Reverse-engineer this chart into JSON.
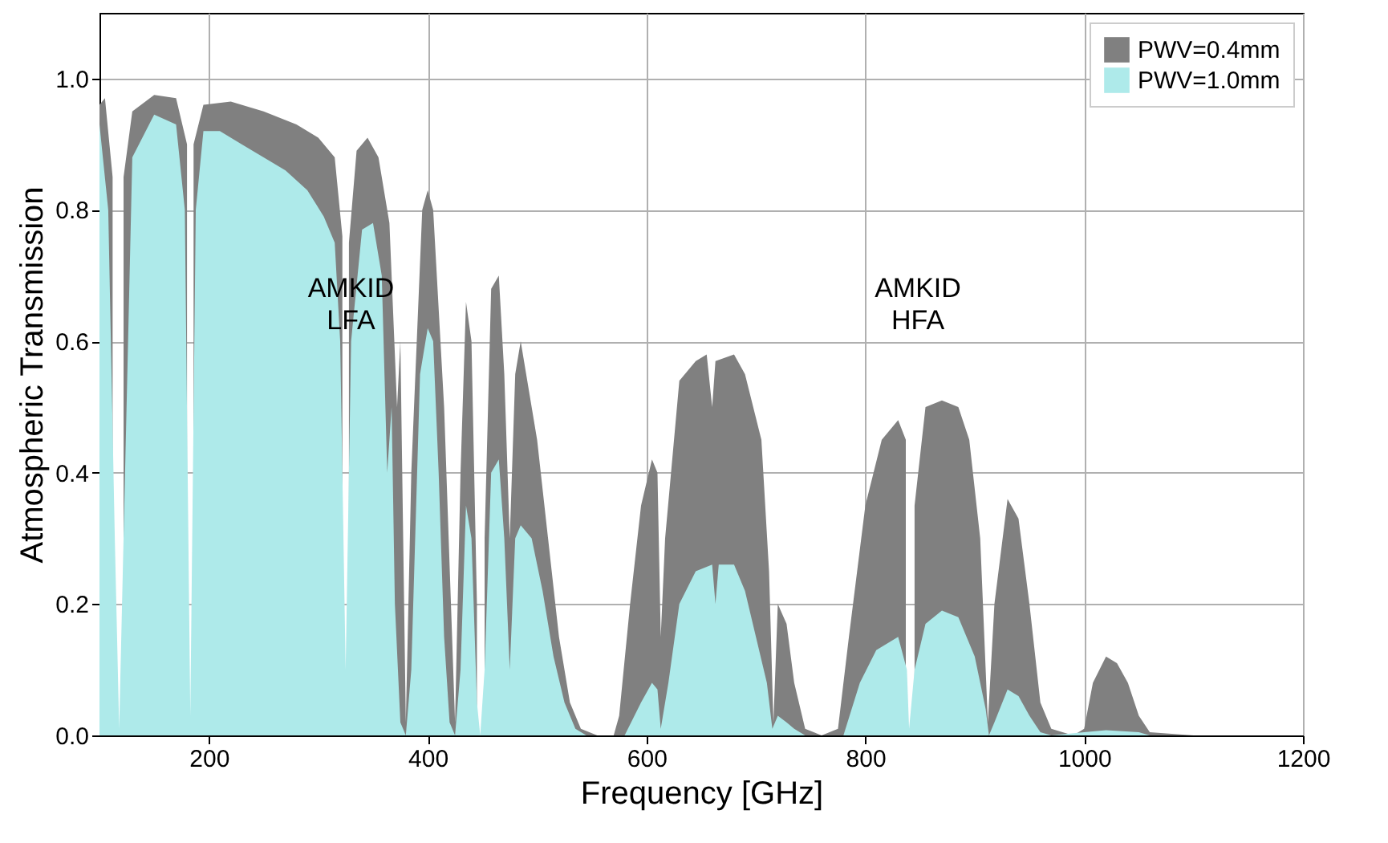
{
  "chart_data": {
    "type": "area",
    "xlabel": "Frequency [GHz]",
    "ylabel": "Atmospheric Transmission",
    "xlim": [
      100,
      1200
    ],
    "ylim": [
      0,
      1.1
    ],
    "xticks": [
      200,
      400,
      600,
      800,
      1000,
      1200
    ],
    "yticks": [
      {
        "value": 0,
        "label": "0.0"
      },
      {
        "value": 0.2,
        "label": "0.2"
      },
      {
        "value": 0.4,
        "label": "0.4"
      },
      {
        "value": 0.6,
        "label": "0.6"
      },
      {
        "value": 0.8,
        "label": "0.8"
      },
      {
        "value": 1,
        "label": "1.0"
      }
    ],
    "grid": true,
    "legend": "top right",
    "annotations": [
      "AMKID LFA",
      "AMKID HFA"
    ],
    "series": [
      {
        "name": "PWV=0.4mm",
        "color": "#808080",
        "x": [
          100,
          105,
          112,
          118,
          122,
          130,
          150,
          170,
          180,
          183,
          186,
          195,
          220,
          250,
          280,
          300,
          315,
          322,
          325,
          328,
          335,
          345,
          355,
          365,
          372,
          375,
          380,
          385,
          395,
          400,
          405,
          415,
          425,
          430,
          435,
          440,
          445,
          448,
          452,
          458,
          465,
          470,
          475,
          480,
          485,
          490,
          500,
          510,
          520,
          530,
          540,
          555,
          570,
          575,
          585,
          595,
          605,
          610,
          613,
          617,
          630,
          645,
          655,
          660,
          663,
          680,
          690,
          705,
          712,
          716,
          720,
          728,
          735,
          745,
          760,
          775,
          785,
          800,
          815,
          830,
          837,
          840,
          845,
          855,
          870,
          885,
          895,
          905,
          912,
          918,
          930,
          940,
          950,
          960,
          970,
          990,
          1000,
          1008,
          1020,
          1030,
          1040,
          1050,
          1060,
          1100,
          1200
        ],
        "values": [
          0.96,
          0.97,
          0.85,
          null,
          0.85,
          0.95,
          0.975,
          0.97,
          0.9,
          null,
          0.9,
          0.96,
          0.965,
          0.95,
          0.93,
          0.91,
          0.88,
          0.76,
          null,
          0.75,
          0.89,
          0.91,
          0.88,
          0.78,
          0.5,
          0.6,
          0.02,
          0.4,
          0.8,
          0.83,
          0.8,
          0.5,
          0.02,
          0.4,
          0.66,
          0.6,
          0.2,
          null,
          0.3,
          0.68,
          0.7,
          0.55,
          0.3,
          0.55,
          0.6,
          0.55,
          0.45,
          0.3,
          0.15,
          0.05,
          0.01,
          0,
          0,
          0.03,
          0.2,
          0.35,
          0.42,
          0.4,
          0.15,
          0.3,
          0.54,
          0.57,
          0.58,
          0.5,
          0.57,
          0.58,
          0.55,
          0.45,
          0.25,
          0.02,
          0.2,
          0.17,
          0.08,
          0.01,
          0,
          0.01,
          0.15,
          0.35,
          0.45,
          0.48,
          0.45,
          null,
          0.35,
          0.5,
          0.51,
          0.5,
          0.45,
          0.3,
          0.02,
          0.2,
          0.36,
          0.33,
          0.2,
          0.05,
          0.01,
          0,
          0.01,
          0.08,
          0.12,
          0.11,
          0.08,
          0.03,
          0.005,
          0,
          0
        ]
      },
      {
        "name": "PWV=1.0mm",
        "color": "#aeeaea",
        "x": [
          100,
          108,
          114,
          118,
          122,
          130,
          150,
          170,
          178,
          183,
          188,
          195,
          210,
          230,
          250,
          270,
          290,
          305,
          315,
          320,
          325,
          330,
          340,
          350,
          358,
          363,
          367,
          370,
          375,
          380,
          385,
          393,
          400,
          405,
          410,
          415,
          420,
          425,
          430,
          435,
          440,
          445,
          448,
          452,
          458,
          465,
          470,
          475,
          480,
          485,
          495,
          505,
          515,
          525,
          535,
          545,
          580,
          595,
          605,
          610,
          613,
          620,
          630,
          645,
          660,
          663,
          666,
          680,
          690,
          700,
          710,
          715,
          720,
          728,
          735,
          745,
          780,
          795,
          810,
          830,
          838,
          840,
          845,
          855,
          870,
          885,
          900,
          910,
          913,
          918,
          930,
          940,
          950,
          960,
          970,
          1000,
          1020,
          1050,
          1060,
          1200
        ],
        "values": [
          0.93,
          0.8,
          0.3,
          0.01,
          0.3,
          0.88,
          0.945,
          0.93,
          0.8,
          0.03,
          0.8,
          0.92,
          0.92,
          0.9,
          0.88,
          0.86,
          0.83,
          0.79,
          0.75,
          0.6,
          0.1,
          0.6,
          0.77,
          0.78,
          0.7,
          0.4,
          0.5,
          0.2,
          0.02,
          0,
          0.1,
          0.55,
          0.62,
          0.6,
          0.4,
          0.15,
          0.02,
          0,
          0.1,
          0.35,
          0.3,
          0.05,
          0,
          0.1,
          0.4,
          0.42,
          0.3,
          0.1,
          0.3,
          0.32,
          0.3,
          0.22,
          0.12,
          0.05,
          0.01,
          0,
          0,
          0.05,
          0.08,
          0.07,
          0.01,
          0.08,
          0.2,
          0.25,
          0.26,
          0.2,
          0.26,
          0.26,
          0.22,
          0.15,
          0.08,
          0.01,
          0.03,
          0.02,
          0.01,
          0,
          0,
          0.08,
          0.13,
          0.15,
          0.1,
          0.01,
          0.1,
          0.17,
          0.19,
          0.18,
          0.12,
          0.04,
          0,
          0.02,
          0.07,
          0.06,
          0.03,
          0.005,
          0,
          0.005,
          0.008,
          0.005,
          0,
          0
        ]
      }
    ]
  }
}
